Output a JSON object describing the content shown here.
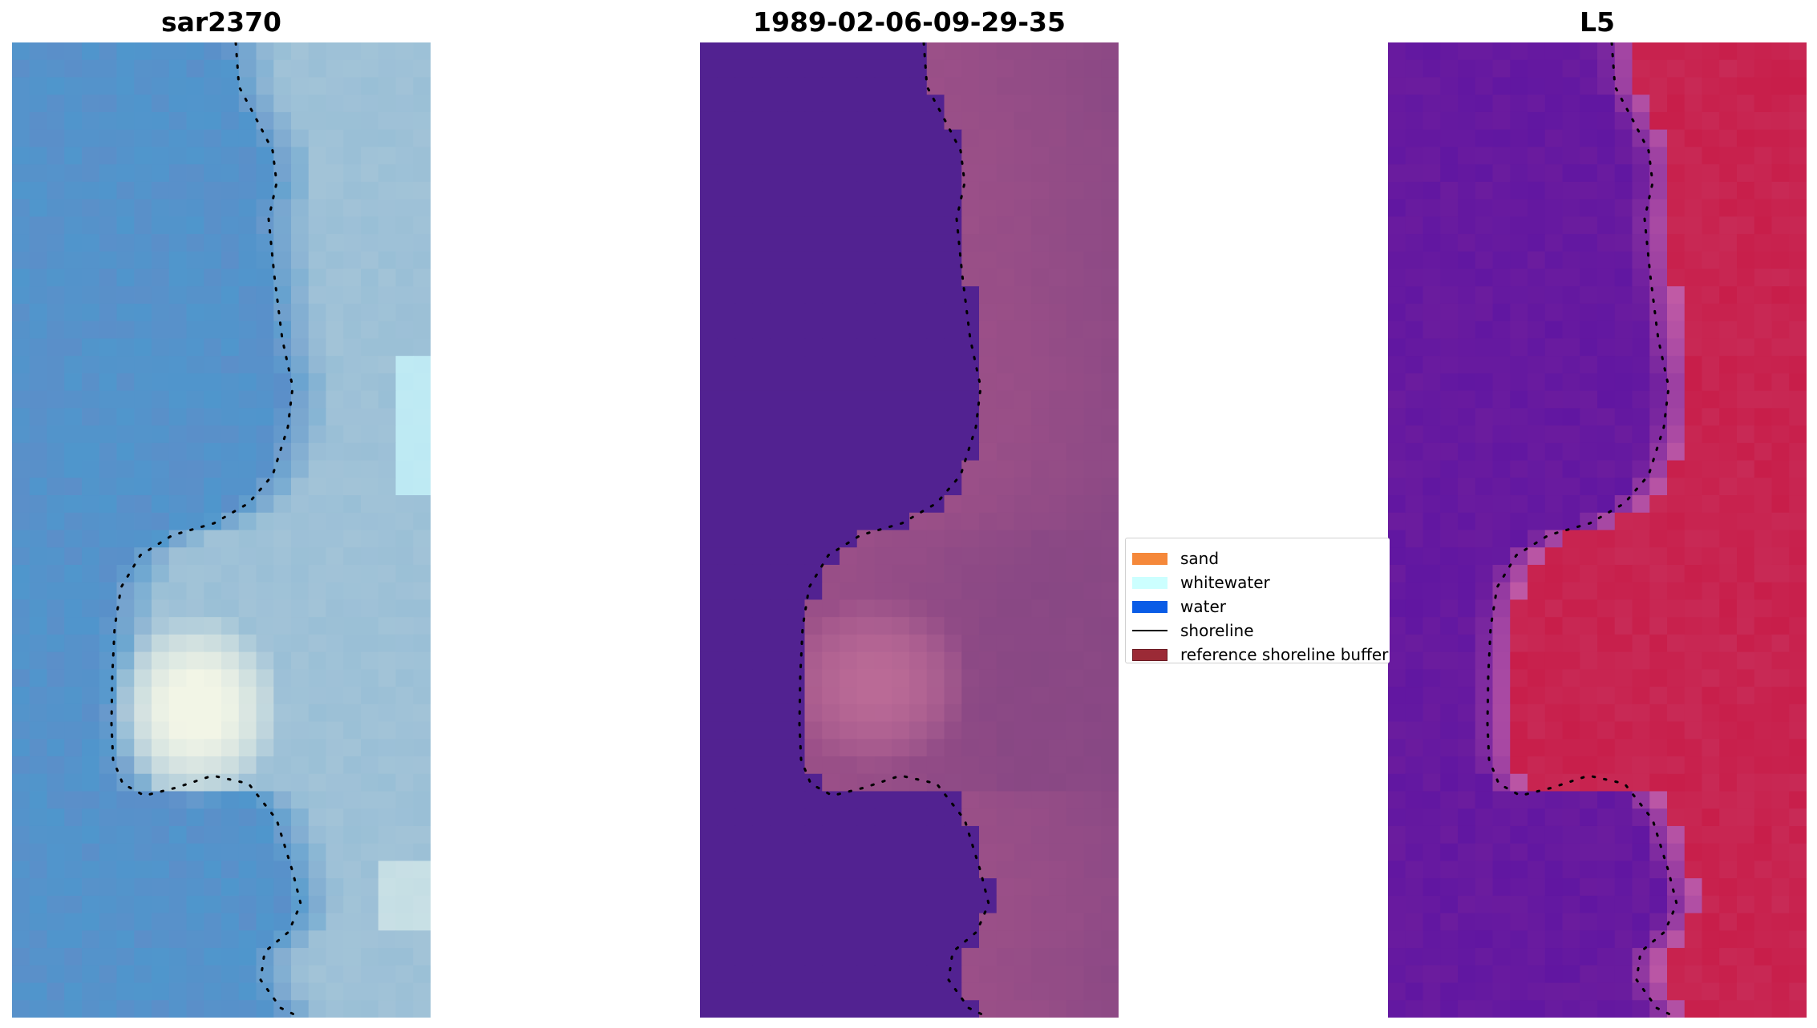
{
  "panels": [
    {
      "title": "sar2370"
    },
    {
      "title": "1989-02-06-09-29-35"
    },
    {
      "title": "L5"
    }
  ],
  "legend": {
    "items": [
      {
        "label": "sand",
        "color": "#f5883a",
        "kind": "patch"
      },
      {
        "label": "whitewater",
        "color": "#ccffff",
        "kind": "patch"
      },
      {
        "label": "water",
        "color": "#0a5ce6",
        "kind": "patch"
      },
      {
        "label": "shoreline",
        "color": "#000000",
        "kind": "line"
      },
      {
        "label": "reference shoreline buffer",
        "color": "#9b2a36",
        "kind": "patch"
      }
    ]
  },
  "colors": {
    "rgb_water": "#5294cc",
    "rgb_foam": "#f2f5e6",
    "class_water": "#522291",
    "class_land": "#9c5088",
    "index_water": "#6b1ea0",
    "index_land": "#c81e4a"
  }
}
